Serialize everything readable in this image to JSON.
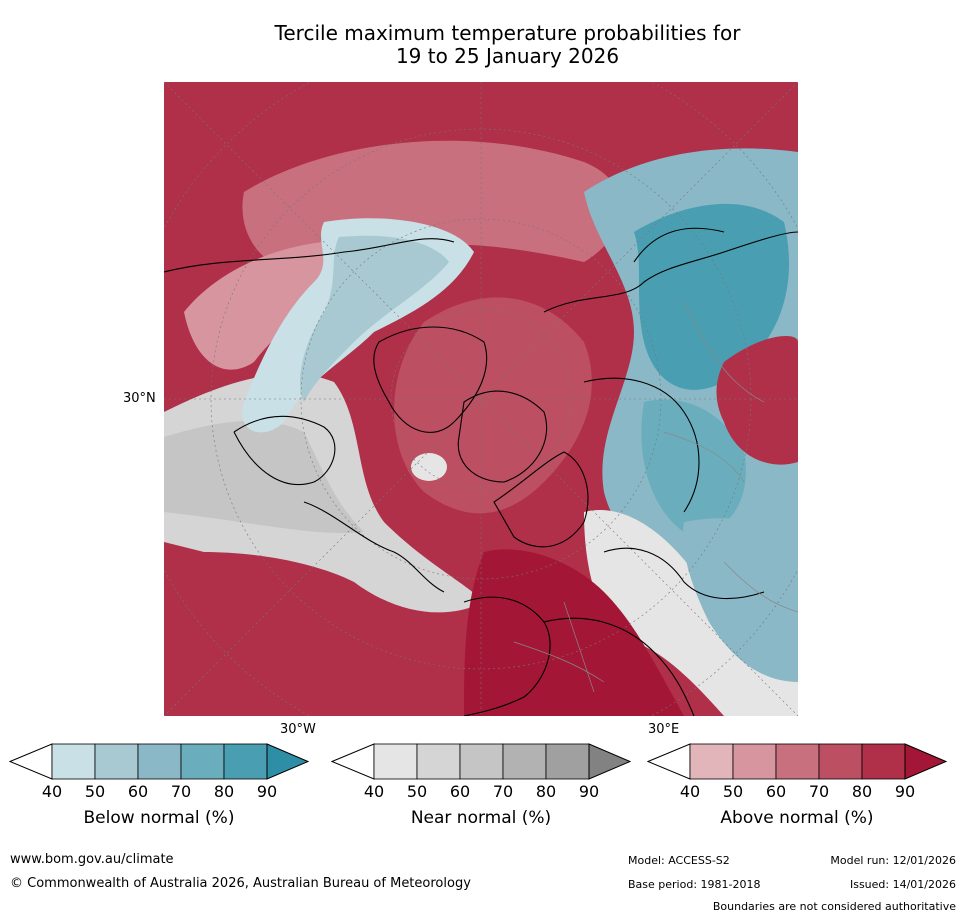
{
  "title": {
    "line1": "Tercile maximum temperature probabilities for",
    "line2": "19 to 25 January 2026"
  },
  "map": {
    "labels": {
      "lat_30n": "30°N",
      "lon_30w": "30°W",
      "lon_30e": "30°E"
    },
    "colors": {
      "above": [
        "#e2b5bb",
        "#d7959f",
        "#c8707e",
        "#bc4f61",
        "#b02f49",
        "#a31635"
      ],
      "near": [
        "#e5e5e5",
        "#d5d5d5",
        "#c5c5c5",
        "#b2b2b2",
        "#a0a0a0",
        "#828282"
      ],
      "below": [
        "#c8e0e6",
        "#a8c9d1",
        "#8ab8c6",
        "#6aaebe",
        "#4a9eb1",
        "#2e8ea5"
      ]
    }
  },
  "colorbars": [
    {
      "name": "below",
      "label": "Below normal (%)",
      "ticks": [
        "40",
        "50",
        "60",
        "70",
        "80",
        "90"
      ],
      "colors": [
        "#c8e0e6",
        "#a8c9d1",
        "#8ab8c6",
        "#6aaebe",
        "#4a9eb1",
        "#2e8ea5"
      ]
    },
    {
      "name": "near",
      "label": "Near normal (%)",
      "ticks": [
        "40",
        "50",
        "60",
        "70",
        "80",
        "90"
      ],
      "colors": [
        "#e5e5e5",
        "#d5d5d5",
        "#c5c5c5",
        "#b2b2b2",
        "#a0a0a0",
        "#828282"
      ]
    },
    {
      "name": "above",
      "label": "Above normal (%)",
      "ticks": [
        "40",
        "50",
        "60",
        "70",
        "80",
        "90"
      ],
      "colors": [
        "#e2b5bb",
        "#d7959f",
        "#c8707e",
        "#bc4f61",
        "#b02f49",
        "#a31635"
      ]
    }
  ],
  "footer": {
    "url": "www.bom.gov.au/climate",
    "copyright": "© Commonwealth of Australia 2026, Australian Bureau of Meteorology",
    "model": "Model: ACCESS-S2",
    "base_period": "Base period: 1981-2018",
    "model_run": "Model run: 12/01/2026",
    "issued": "Issued: 14/01/2026",
    "disclaimer": "Boundaries are not considered authoritative"
  }
}
